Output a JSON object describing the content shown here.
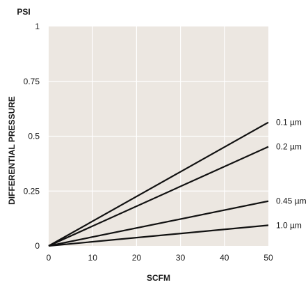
{
  "chart_data": {
    "type": "line",
    "unit_label": "PSI",
    "ylabel": "DIFFERENTIAL PRESSURE",
    "xlabel": "SCFM",
    "xlim": [
      0,
      50
    ],
    "ylim": [
      0,
      1
    ],
    "x_ticks": [
      "0",
      "10",
      "20",
      "30",
      "40",
      "50"
    ],
    "y_ticks": [
      "0",
      "0.25",
      "0.5",
      "0.75",
      "1"
    ],
    "grid": true,
    "plot_background": "#ece7e1",
    "grid_color": "#ffffff",
    "line_color": "#111111",
    "series": [
      {
        "name": "0.1 µm",
        "x": [
          0,
          50
        ],
        "y": [
          0,
          0.563
        ]
      },
      {
        "name": "0.2 µm",
        "x": [
          0,
          50
        ],
        "y": [
          0,
          0.452
        ]
      },
      {
        "name": "0.45 µm",
        "x": [
          0,
          50
        ],
        "y": [
          0,
          0.204
        ]
      },
      {
        "name": "1.0 µm",
        "x": [
          0,
          50
        ],
        "y": [
          0,
          0.094
        ]
      }
    ]
  }
}
